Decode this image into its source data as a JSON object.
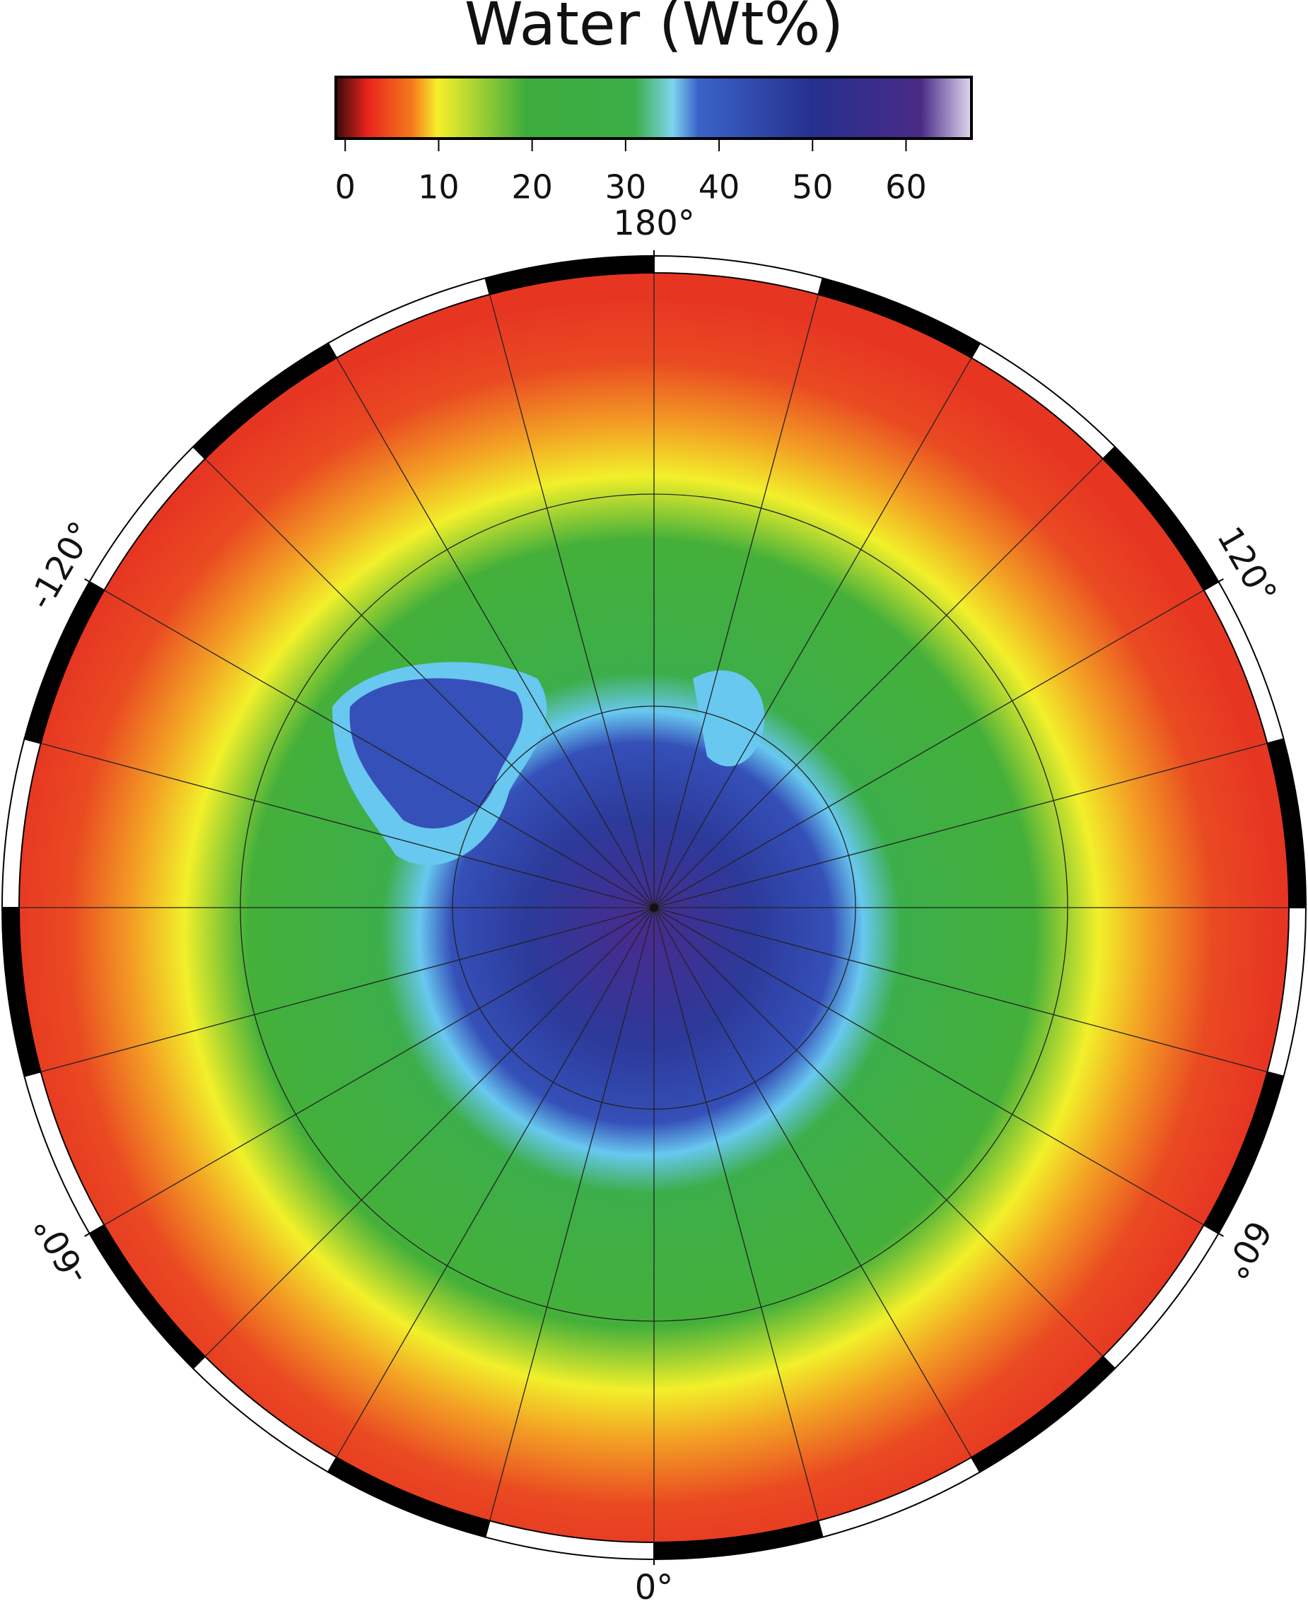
{
  "title": "Water (Wt%)",
  "colorbar": {
    "lim": [
      -1,
      67
    ],
    "ticks": [
      0,
      10,
      20,
      30,
      40,
      50,
      60
    ]
  },
  "map": {
    "longitude_labels": [
      {
        "value": 180,
        "label": "180°"
      },
      {
        "value": 120,
        "label": "120°"
      },
      {
        "value": -120,
        "label": "-120°"
      },
      {
        "value": 60,
        "label": "60°"
      },
      {
        "value": -60,
        "label": "-60°"
      },
      {
        "value": 0,
        "label": "0°"
      }
    ]
  }
}
